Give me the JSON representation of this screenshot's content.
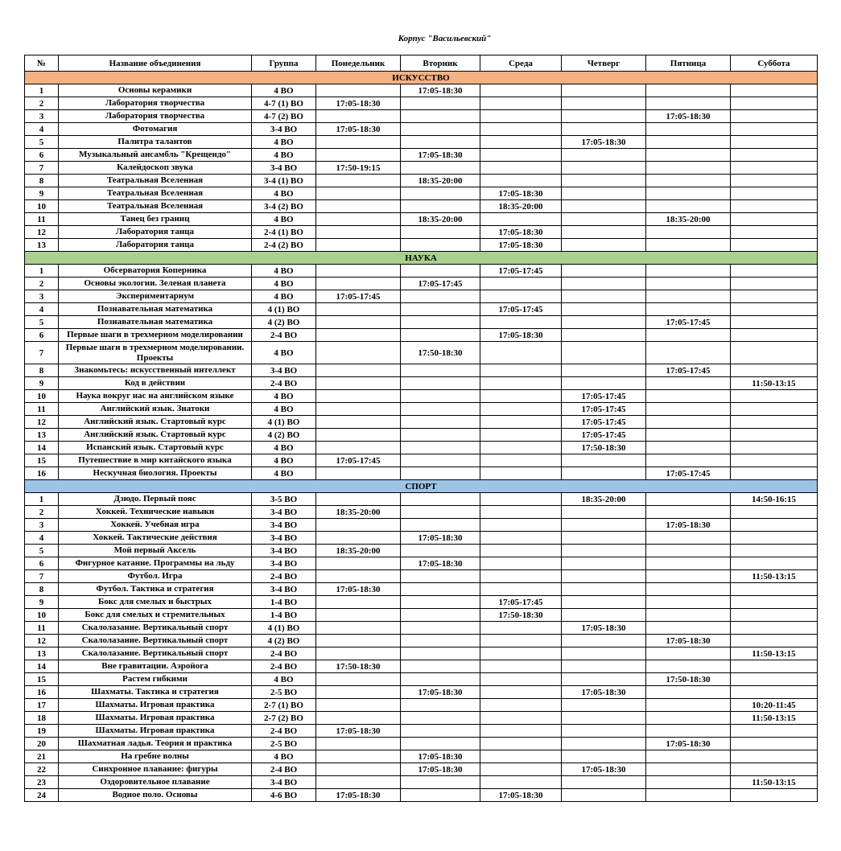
{
  "title": "Корпус  \"Васильевский\"",
  "headers": [
    "№",
    "Название объединения",
    "Группа",
    "Понедельник",
    "Вторник",
    "Среда",
    "Четверг",
    "Пятница",
    "Суббота"
  ],
  "colors": {
    "art": "#f4b183",
    "science": "#a9d18e",
    "sport": "#9dc3e6"
  },
  "sections": [
    {
      "title": "ИСКУССТВО",
      "color": "#f4b183",
      "rows": [
        [
          "1",
          "Основы керамики",
          "4 ВО",
          "",
          "17:05-18:30",
          "",
          "",
          "",
          ""
        ],
        [
          "2",
          "Лаборатория творчества",
          "4-7 (1) ВО",
          "17:05-18:30",
          "",
          "",
          "",
          "",
          ""
        ],
        [
          "3",
          "Лаборатория творчества",
          "4-7 (2) ВО",
          "",
          "",
          "",
          "",
          "17:05-18:30",
          ""
        ],
        [
          "4",
          "Фотомагия",
          "3-4 ВО",
          "17:05-18:30",
          "",
          "",
          "",
          "",
          ""
        ],
        [
          "5",
          "Палитра талантов",
          "4 ВО",
          "",
          "",
          "",
          "17:05-18:30",
          "",
          ""
        ],
        [
          "6",
          "Музыкальный ансамбль \"Крещендо\"",
          "4 ВО",
          "",
          "17:05-18:30",
          "",
          "",
          "",
          ""
        ],
        [
          "7",
          "Калейдоскоп звука",
          "3-4 ВО",
          "17:50-19:15",
          "",
          "",
          "",
          "",
          ""
        ],
        [
          "8",
          "Театральная Вселенная",
          "3-4 (1) ВО",
          "",
          "18:35-20:00",
          "",
          "",
          "",
          ""
        ],
        [
          "9",
          "Театральная Вселенная",
          "4 ВО",
          "",
          "",
          "17:05-18:30",
          "",
          "",
          ""
        ],
        [
          "10",
          "Театральная Вселенная",
          "3-4 (2) ВО",
          "",
          "",
          "18:35-20:00",
          "",
          "",
          ""
        ],
        [
          "11",
          "Танец без границ",
          "4 ВО",
          "",
          "18:35-20:00",
          "",
          "",
          "18:35-20:00",
          ""
        ],
        [
          "12",
          "Лаборатория танца",
          "2-4 (1) ВО",
          "",
          "",
          "17:05-18:30",
          "",
          "",
          ""
        ],
        [
          "13",
          "Лаборатория танца",
          "2-4 (2) ВО",
          "",
          "",
          "17:05-18:30",
          "",
          "",
          ""
        ]
      ]
    },
    {
      "title": "НАУКА",
      "color": "#a9d18e",
      "rows": [
        [
          "1",
          "Обсерватория Коперника",
          "4 ВО",
          "",
          "",
          "17:05-17:45",
          "",
          "",
          ""
        ],
        [
          "2",
          "Основы экологии. Зеленая планета",
          "4 ВО",
          "",
          "17:05-17:45",
          "",
          "",
          "",
          ""
        ],
        [
          "3",
          "Экспериментарнум",
          "4 ВО",
          "17:05-17:45",
          "",
          "",
          "",
          "",
          ""
        ],
        [
          "4",
          "Познавательная математика",
          "4 (1) ВО",
          "",
          "",
          "17:05-17:45",
          "",
          "",
          ""
        ],
        [
          "5",
          "Познавательная математика",
          "4 (2) ВО",
          "",
          "",
          "",
          "",
          "17:05-17:45",
          ""
        ],
        [
          "6",
          "Первые шаги в трехмерном моделировании",
          "2-4 ВО",
          "",
          "",
          "17:05-18:30",
          "",
          "",
          ""
        ],
        [
          "7",
          "Первые шаги в трехмерном моделировании. Проекты",
          "4 ВО",
          "",
          "17:50-18:30",
          "",
          "",
          "",
          ""
        ],
        [
          "8",
          "Знакомьтесь: искусственный интеллект",
          "3-4 ВО",
          "",
          "",
          "",
          "",
          "17:05-17:45",
          ""
        ],
        [
          "9",
          "Код в действии",
          "2-4 ВО",
          "",
          "",
          "",
          "",
          "",
          "11:50-13:15"
        ],
        [
          "10",
          "Наука вокруг нас на английском языке",
          "4 ВО",
          "",
          "",
          "",
          "17:05-17:45",
          "",
          ""
        ],
        [
          "11",
          "Английский язык. Знатоки",
          "4 ВО",
          "",
          "",
          "",
          "17:05-17:45",
          "",
          ""
        ],
        [
          "12",
          "Английский язык. Стартовый курс",
          "4 (1) ВО",
          "",
          "",
          "",
          "17:05-17:45",
          "",
          ""
        ],
        [
          "13",
          "Английский язык. Стартовый курс",
          "4 (2) ВО",
          "",
          "",
          "",
          "17:05-17:45",
          "",
          ""
        ],
        [
          "14",
          "Испанский язык. Стартовый курс",
          "4 ВО",
          "",
          "",
          "",
          "17:50-18:30",
          "",
          ""
        ],
        [
          "15",
          "Путешествие в мир китайского языка",
          "4 ВО",
          "17:05-17:45",
          "",
          "",
          "",
          "",
          ""
        ],
        [
          "16",
          "Нескучная биология. Проекты",
          "4 ВО",
          "",
          "",
          "",
          "",
          "17:05-17:45",
          ""
        ]
      ]
    },
    {
      "title": "СПОРТ",
      "color": "#9dc3e6",
      "rows": [
        [
          "1",
          "Дзюдо. Первый пояс",
          "3-5 ВО",
          "",
          "",
          "",
          "18:35-20:00",
          "",
          "14:50-16:15"
        ],
        [
          "2",
          "Хоккей. Технические навыки",
          "3-4 ВО",
          "18:35-20:00",
          "",
          "",
          "",
          "",
          ""
        ],
        [
          "3",
          "Хоккей. Учебная игра",
          "3-4 ВО",
          "",
          "",
          "",
          "",
          "17:05-18:30",
          ""
        ],
        [
          "4",
          "Хоккей. Тактические действия",
          "3-4 ВО",
          "",
          "17:05-18:30",
          "",
          "",
          "",
          ""
        ],
        [
          "5",
          "Мой первый Аксель",
          "3-4 ВО",
          "18:35-20:00",
          "",
          "",
          "",
          "",
          ""
        ],
        [
          "6",
          "Фигурное катание. Программы на льду",
          "3-4 ВО",
          "",
          "17:05-18:30",
          "",
          "",
          "",
          ""
        ],
        [
          "7",
          "Футбол. Игра",
          "2-4 ВО",
          "",
          "",
          "",
          "",
          "",
          "11:50-13:15"
        ],
        [
          "8",
          "Футбол. Тактика и стратегия",
          "3-4 ВО",
          "17:05-18:30",
          "",
          "",
          "",
          "",
          ""
        ],
        [
          "9",
          "Бокс для смелых и быстрых",
          "1-4 ВО",
          "",
          "",
          "17:05-17:45",
          "",
          "",
          ""
        ],
        [
          "10",
          "Бокс для смелых и стремительных",
          "1-4 ВО",
          "",
          "",
          "17:50-18:30",
          "",
          "",
          ""
        ],
        [
          "11",
          "Скалолазание. Вертикальный спорт",
          "4 (1) ВО",
          "",
          "",
          "",
          "17:05-18:30",
          "",
          ""
        ],
        [
          "12",
          "Скалолазание. Вертикальный спорт",
          "4 (2) ВО",
          "",
          "",
          "",
          "",
          "17:05-18:30",
          ""
        ],
        [
          "13",
          "Скалолазание. Вертикальный спорт",
          "2-4 ВО",
          "",
          "",
          "",
          "",
          "",
          "11:50-13:15"
        ],
        [
          "14",
          "Вне гравитации. Аэройога",
          "2-4 ВО",
          "17:50-18:30",
          "",
          "",
          "",
          "",
          ""
        ],
        [
          "15",
          "Растем гибкими",
          "4 ВО",
          "",
          "",
          "",
          "",
          "17:50-18:30",
          ""
        ],
        [
          "16",
          "Шахматы. Тактика и стратегия",
          "2-5 ВО",
          "",
          "17:05-18:30",
          "",
          "17:05-18:30",
          "",
          ""
        ],
        [
          "17",
          "Шахматы. Игровая практика",
          "2-7 (1) ВО",
          "",
          "",
          "",
          "",
          "",
          "10:20-11:45"
        ],
        [
          "18",
          "Шахматы. Игровая практика",
          "2-7 (2) ВО",
          "",
          "",
          "",
          "",
          "",
          "11:50-13:15"
        ],
        [
          "19",
          "Шахматы. Игровая практика",
          "2-4 ВО",
          "17:05-18:30",
          "",
          "",
          "",
          "",
          ""
        ],
        [
          "20",
          "Шахматная ладья. Теория и практика",
          "2-5 ВО",
          "",
          "",
          "",
          "",
          "17:05-18:30",
          ""
        ],
        [
          "21",
          "На гребне волны",
          "4 ВО",
          "",
          "17:05-18:30",
          "",
          "",
          "",
          ""
        ],
        [
          "22",
          "Синхронное плавание: фигуры",
          "2-4 ВО",
          "",
          "17:05-18:30",
          "",
          "17:05-18:30",
          "",
          ""
        ],
        [
          "23",
          "Оздоровительное плавание",
          "3-4 ВО",
          "",
          "",
          "",
          "",
          "",
          "11:50-13:15"
        ],
        [
          "24",
          "Водное поло. Основы",
          "4-6 ВО",
          "17:05-18:30",
          "",
          "17:05-18:30",
          "",
          "",
          ""
        ]
      ]
    }
  ]
}
